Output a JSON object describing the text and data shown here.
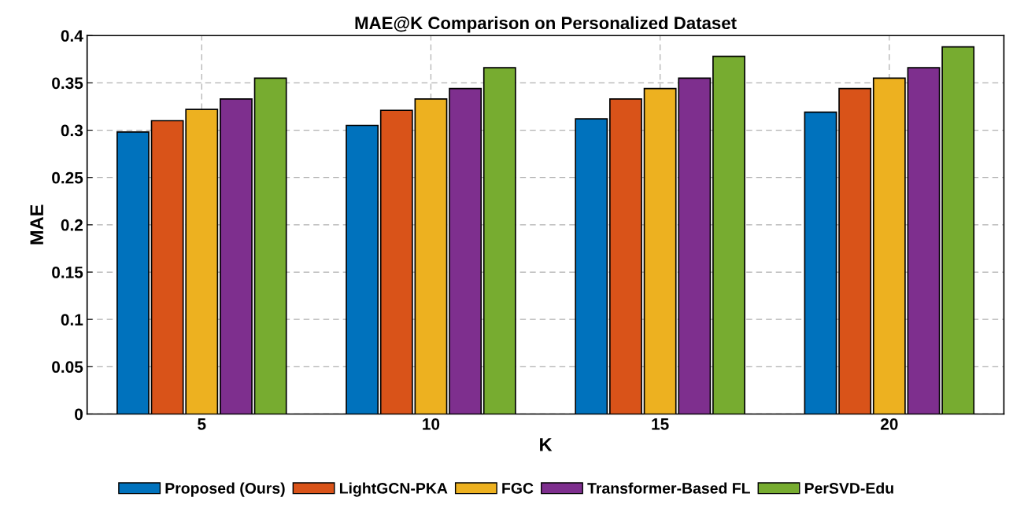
{
  "chart_data": {
    "type": "bar",
    "title": "MAE@K Comparison on Personalized Dataset",
    "xlabel": "K",
    "ylabel": "MAE",
    "categories": [
      "5",
      "10",
      "15",
      "20"
    ],
    "series": [
      {
        "name": "Proposed (Ours)",
        "color": "#0072bd",
        "values": [
          0.298,
          0.305,
          0.312,
          0.319
        ]
      },
      {
        "name": "LightGCN-PKA",
        "color": "#d95319",
        "values": [
          0.31,
          0.321,
          0.333,
          0.344
        ]
      },
      {
        "name": "FGC",
        "color": "#edb120",
        "values": [
          0.322,
          0.333,
          0.344,
          0.355
        ]
      },
      {
        "name": "Transformer-Based FL",
        "color": "#7e2f8e",
        "values": [
          0.333,
          0.344,
          0.355,
          0.366
        ]
      },
      {
        "name": "PerSVD-Edu",
        "color": "#77ac30",
        "values": [
          0.355,
          0.366,
          0.378,
          0.388
        ]
      }
    ],
    "ylim": [
      0,
      0.4
    ],
    "yticks": [
      0,
      {
        "value": 0.05,
        "label": "0.05"
      },
      {
        "value": 0.1,
        "label": "0.1"
      },
      {
        "value": 0.15,
        "label": "0.15"
      },
      {
        "value": 0.2,
        "label": "0.2"
      },
      {
        "value": 0.25,
        "label": "0.25"
      },
      {
        "value": 0.3,
        "label": "0.3"
      },
      {
        "value": 0.35,
        "label": "0.35"
      },
      {
        "value": 0.4,
        "label": "0.4"
      }
    ],
    "grid": true,
    "legend": "bottom"
  }
}
